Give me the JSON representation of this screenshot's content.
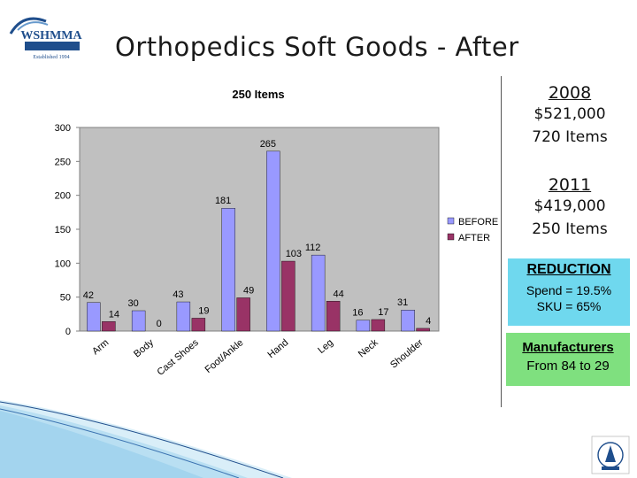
{
  "logo": {
    "name": "logo-icon",
    "text": "WSHMMA",
    "subtext": "Established 1994"
  },
  "slide_title": "Orthopedics Soft Goods - After",
  "stats_2008": {
    "year": "2008",
    "spend": "$521,000",
    "items": "720 Items"
  },
  "stats_2011": {
    "year": "2011",
    "spend": "$419,000",
    "items": "250 Items"
  },
  "reduction": {
    "heading": "REDUCTION",
    "spend": "Spend = 19.5%",
    "sku": "SKU = 65%",
    "color": "#6fd8ee"
  },
  "manufacturers": {
    "heading": "Manufacturers",
    "text": "From 84 to 29",
    "color": "#7fe07f"
  },
  "chart_data": {
    "type": "bar",
    "title": "250 Items",
    "xlabel": "",
    "ylabel": "",
    "categories": [
      "Arm",
      "Body",
      "Cast Shoes",
      "Foot/Ankle",
      "Hand",
      "Leg",
      "Neck",
      "Shoulder"
    ],
    "series": [
      {
        "name": "BEFORE",
        "color": "#9999ff",
        "values": [
          42,
          30,
          43,
          181,
          265,
          112,
          16,
          31
        ]
      },
      {
        "name": "AFTER",
        "color": "#993366",
        "values": [
          14,
          0,
          19,
          49,
          103,
          44,
          17,
          4
        ]
      }
    ],
    "ylim": [
      0,
      300
    ],
    "yticks": [
      0,
      50,
      100,
      150,
      200,
      250,
      300
    ],
    "grid": false,
    "legend": "right",
    "plot_bg": "#c0c0c0"
  }
}
